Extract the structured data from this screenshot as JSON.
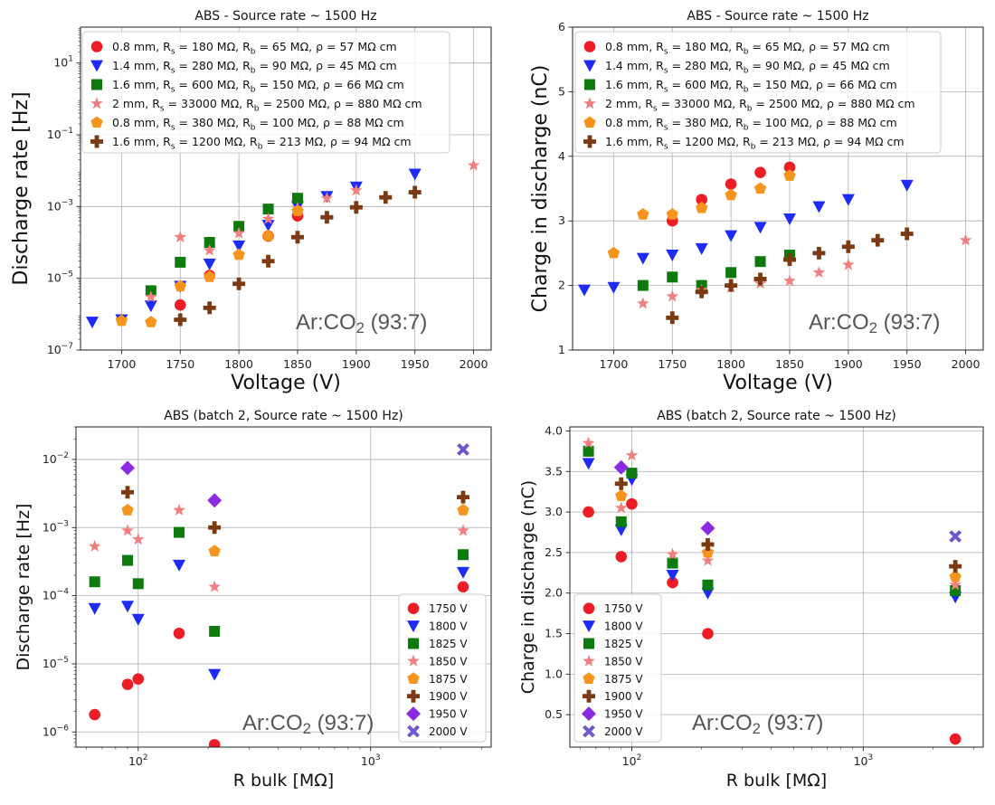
{
  "chart_data": [
    {
      "type": "scatter",
      "title": "ABS - Source rate ~ 1500 Hz",
      "xlabel": "Voltage (V)",
      "ylabel": "Discharge rate [Hz]",
      "yscale": "log",
      "xlim": [
        1665,
        2015
      ],
      "ylim": [
        1e-07,
        100
      ],
      "xticks": [
        1700,
        1750,
        1800,
        1850,
        1900,
        1950,
        2000
      ],
      "yticks": [
        1e-07,
        1e-05,
        0.001,
        0.1,
        10
      ],
      "ytick_labels": [
        {
          "base": "10",
          "exp": "−7"
        },
        {
          "base": "10",
          "exp": "−5"
        },
        {
          "base": "10",
          "exp": "−3"
        },
        {
          "base": "10",
          "exp": "−1"
        },
        {
          "base": "10",
          "exp": "1"
        }
      ],
      "annotation": {
        "main": "Ar:CO",
        "sub": "2",
        "tail": " (93:7)"
      },
      "legend_position": "top-left",
      "series": [
        {
          "name": "0.8 mm, R_s = 180 MΩ, R_b = 65 MΩ, ρ = 57 MΩ cm",
          "label": {
            "a": "0.8 mm, R",
            "b": "s",
            "c": " = 180 MΩ, R",
            "d": "b",
            "e": " = 65 MΩ, ρ = 57 MΩ cm"
          },
          "marker": "circle",
          "color": "#ee1c25",
          "x": [
            1750,
            1775,
            1825,
            1850
          ],
          "y": [
            1.8e-06,
            1.2e-05,
            0.00015,
            0.00055
          ]
        },
        {
          "name": "1.4 mm, R_s = 280 MΩ, R_b = 90 MΩ, ρ = 45 MΩ cm",
          "label": {
            "a": "1.4 mm, R",
            "b": "s",
            "c": " = 280 MΩ, R",
            "d": "b",
            "e": " = 90 MΩ, ρ = 45 MΩ cm"
          },
          "marker": "triangle-down",
          "color": "#1d2bf5",
          "x": [
            1675,
            1700,
            1725,
            1750,
            1775,
            1800,
            1825,
            1850,
            1875,
            1900,
            1950
          ],
          "y": [
            6e-07,
            7e-07,
            1.7e-06,
            6e-06,
            2.5e-05,
            8e-05,
            0.0003,
            0.001,
            0.0019,
            0.0035,
            0.008
          ]
        },
        {
          "name": "1.6 mm, R_s = 600 MΩ, R_b = 150 MΩ, ρ = 66 MΩ cm",
          "label": {
            "a": "1.6 mm, R",
            "b": "s",
            "c": " = 600 MΩ, R",
            "d": "b",
            "e": " = 150 MΩ, ρ = 66 MΩ cm"
          },
          "marker": "square",
          "color": "#0c7a0c",
          "x": [
            1725,
            1750,
            1775,
            1800,
            1825,
            1850
          ],
          "y": [
            4.5e-06,
            2.8e-05,
            0.0001,
            0.00028,
            0.00085,
            0.0017
          ]
        },
        {
          "name": "2 mm, R_s = 33000 MΩ, R_b = 2500 MΩ, ρ = 880 MΩ cm",
          "label": {
            "a": "2 mm, R",
            "b": "s",
            "c": " = 33000 MΩ, R",
            "d": "b",
            "e": " = 2500 MΩ, ρ = 880 MΩ cm"
          },
          "marker": "star",
          "color": "#f08080",
          "x": [
            1700,
            1725,
            1750,
            1775,
            1800,
            1825,
            1850,
            1875,
            1900,
            2000
          ],
          "y": [
            7e-07,
            3e-06,
            0.00014,
            6e-05,
            0.00018,
            0.00045,
            0.0009,
            0.0017,
            0.0028,
            0.014
          ]
        },
        {
          "name": "0.8 mm, R_s = 380 MΩ, R_b = 100 MΩ, ρ = 88 MΩ cm",
          "label": {
            "a": "0.8 mm, R",
            "b": "s",
            "c": " = 380 MΩ, R",
            "d": "b",
            "e": " = 100 MΩ, ρ = 88 MΩ cm"
          },
          "marker": "pentagon",
          "color": "#f7941d",
          "x": [
            1700,
            1725,
            1750,
            1775,
            1800,
            1825,
            1850
          ],
          "y": [
            6.5e-07,
            6e-07,
            6e-06,
            1.1e-05,
            4.5e-05,
            0.00015,
            0.00075
          ]
        },
        {
          "name": "1.6 mm, R_s = 1200 MΩ, R_b = 213 MΩ, ρ = 94 MΩ cm",
          "label": {
            "a": "1.6 mm, R",
            "b": "s",
            "c": " = 1200 MΩ, R",
            "d": "b",
            "e": " = 213 MΩ, ρ = 94 MΩ cm"
          },
          "marker": "plus",
          "color": "#7b3a12",
          "x": [
            1750,
            1775,
            1800,
            1825,
            1850,
            1875,
            1900,
            1925,
            1950
          ],
          "y": [
            7e-07,
            1.5e-06,
            7e-06,
            3e-05,
            0.00014,
            0.0005,
            0.00095,
            0.0018,
            0.0025
          ]
        }
      ]
    },
    {
      "type": "scatter",
      "title": "ABS - Source rate ~ 1500 Hz",
      "xlabel": "Voltage (V)",
      "ylabel": "Charge in discharge (nC)",
      "yscale": "linear",
      "xlim": [
        1665,
        2015
      ],
      "ylim": [
        1,
        6
      ],
      "xticks": [
        1700,
        1750,
        1800,
        1850,
        1900,
        1950,
        2000
      ],
      "yticks": [
        1,
        2,
        3,
        4,
        5,
        6
      ],
      "ytick_labels": [
        "1",
        "2",
        "3",
        "4",
        "5",
        "6"
      ],
      "annotation": {
        "main": "Ar:CO",
        "sub": "2",
        "tail": " (93:7)"
      },
      "legend_position": "top-left",
      "series": [
        {
          "name": "0.8 mm, R_s = 180 MΩ, R_b = 65 MΩ, ρ = 57 MΩ cm",
          "label": {
            "a": "0.8 mm, R",
            "b": "s",
            "c": " = 180 MΩ, R",
            "d": "b",
            "e": " = 65 MΩ, ρ = 57 MΩ cm"
          },
          "marker": "circle",
          "color": "#ee1c25",
          "x": [
            1750,
            1775,
            1800,
            1825,
            1850
          ],
          "y": [
            3.0,
            3.33,
            3.57,
            3.75,
            3.83
          ]
        },
        {
          "name": "1.4 mm, R_s = 280 MΩ, R_b = 90 MΩ, ρ = 45 MΩ cm",
          "label": {
            "a": "1.4 mm, R",
            "b": "s",
            "c": " = 280 MΩ, R",
            "d": "b",
            "e": " = 90 MΩ, ρ = 45 MΩ cm"
          },
          "marker": "triangle-down",
          "color": "#1d2bf5",
          "x": [
            1675,
            1700,
            1725,
            1750,
            1775,
            1800,
            1825,
            1850,
            1875,
            1900,
            1950
          ],
          "y": [
            1.93,
            1.97,
            2.42,
            2.47,
            2.57,
            2.77,
            2.9,
            3.03,
            3.22,
            3.33,
            3.55
          ]
        },
        {
          "name": "1.6 mm, R_s = 600 MΩ, R_b = 150 MΩ, ρ = 66 MΩ cm",
          "label": {
            "a": "1.6 mm, R",
            "b": "s",
            "c": " = 600 MΩ, R",
            "d": "b",
            "e": " = 150 MΩ, ρ = 66 MΩ cm"
          },
          "marker": "square",
          "color": "#0c7a0c",
          "x": [
            1725,
            1750,
            1775,
            1800,
            1825,
            1850
          ],
          "y": [
            2.0,
            2.13,
            2.0,
            2.2,
            2.37,
            2.47
          ]
        },
        {
          "name": "2 mm, R_s = 33000 MΩ, R_b = 2500 MΩ, ρ = 880 MΩ cm",
          "label": {
            "a": "2 mm, R",
            "b": "s",
            "c": " = 33000 MΩ, R",
            "d": "b",
            "e": " = 2500 MΩ, ρ = 880 MΩ cm"
          },
          "marker": "star",
          "color": "#f08080",
          "x": [
            1725,
            1750,
            1775,
            1800,
            1825,
            1850,
            1875,
            1900,
            2000
          ],
          "y": [
            1.72,
            1.83,
            1.93,
            1.97,
            2.03,
            2.07,
            2.2,
            2.32,
            2.7
          ]
        },
        {
          "name": "0.8 mm, R_s = 380 MΩ, R_b = 100 MΩ, ρ = 88 MΩ cm",
          "label": {
            "a": "0.8 mm, R",
            "b": "s",
            "c": " = 380 MΩ, R",
            "d": "b",
            "e": " = 100 MΩ, ρ = 88 MΩ cm"
          },
          "marker": "pentagon",
          "color": "#f7941d",
          "x": [
            1700,
            1725,
            1750,
            1775,
            1800,
            1825,
            1850
          ],
          "y": [
            2.5,
            3.1,
            3.1,
            3.2,
            3.4,
            3.5,
            3.7
          ]
        },
        {
          "name": "1.6 mm, R_s = 1200 MΩ, R_b = 213 MΩ, ρ = 94 MΩ cm",
          "label": {
            "a": "1.6 mm, R",
            "b": "s",
            "c": " = 1200 MΩ, R",
            "d": "b",
            "e": " = 213 MΩ, ρ = 94 MΩ cm"
          },
          "marker": "plus",
          "color": "#7b3a12",
          "x": [
            1750,
            1775,
            1800,
            1825,
            1850,
            1875,
            1900,
            1925,
            1950
          ],
          "y": [
            1.5,
            1.9,
            2.0,
            2.1,
            2.4,
            2.5,
            2.6,
            2.7,
            2.8
          ]
        }
      ]
    },
    {
      "type": "scatter",
      "title": "ABS (batch 2, Source rate ~ 1500 Hz)",
      "xlabel": "R bulk [MΩ]",
      "ylabel": "Discharge rate [Hz]",
      "xscale": "log",
      "yscale": "log",
      "xlim": [
        54,
        3300
      ],
      "ylim": [
        6e-07,
        0.03
      ],
      "xticks": [
        100,
        1000
      ],
      "xtick_labels": [
        {
          "base": "10",
          "exp": "2"
        },
        {
          "base": "10",
          "exp": "3"
        }
      ],
      "yticks": [
        1e-06,
        1e-05,
        0.0001,
        0.001,
        0.01
      ],
      "ytick_labels": [
        {
          "base": "10",
          "exp": "−6"
        },
        {
          "base": "10",
          "exp": "−5"
        },
        {
          "base": "10",
          "exp": "−4"
        },
        {
          "base": "10",
          "exp": "−3"
        },
        {
          "base": "10",
          "exp": "−2"
        }
      ],
      "annotation": {
        "main": "Ar:CO",
        "sub": "2",
        "tail": " (93:7)"
      },
      "legend_position": "lower-right",
      "series": [
        {
          "name": "1750 V",
          "marker": "circle",
          "color": "#ee1c25",
          "x": [
            65,
            90,
            100,
            150,
            213,
            2500
          ],
          "y": [
            1.8e-06,
            5e-06,
            6e-06,
            2.8e-05,
            6.5e-07,
            0.000135
          ]
        },
        {
          "name": "1800 V",
          "marker": "triangle-down",
          "color": "#1d2bf5",
          "x": [
            65,
            90,
            100,
            150,
            213,
            2500
          ],
          "y": [
            6.5e-05,
            7e-05,
            4.5e-05,
            0.00028,
            7e-06,
            0.00022
          ]
        },
        {
          "name": "1825 V",
          "marker": "square",
          "color": "#0c7a0c",
          "x": [
            65,
            90,
            100,
            150,
            213,
            2500
          ],
          "y": [
            0.00016,
            0.00033,
            0.00015,
            0.00085,
            3e-05,
            0.0004
          ]
        },
        {
          "name": "1850 V",
          "marker": "star",
          "color": "#f08080",
          "x": [
            65,
            90,
            100,
            150,
            213,
            2500
          ],
          "y": [
            0.00053,
            0.0009,
            0.00067,
            0.0018,
            0.000135,
            0.0009
          ]
        },
        {
          "name": "1875 V",
          "marker": "pentagon",
          "color": "#f7941d",
          "x": [
            90,
            213,
            2500
          ],
          "y": [
            0.0018,
            0.00045,
            0.0018
          ]
        },
        {
          "name": "1900 V",
          "marker": "plus",
          "color": "#7b3a12",
          "x": [
            90,
            213,
            2500
          ],
          "y": [
            0.0033,
            0.001,
            0.0028
          ]
        },
        {
          "name": "1950 V",
          "marker": "diamond",
          "color": "#8a2be2",
          "x": [
            90,
            213
          ],
          "y": [
            0.0075,
            0.0025
          ]
        },
        {
          "name": "2000 V",
          "marker": "x",
          "color": "#6a5acd",
          "x": [
            2500
          ],
          "y": [
            0.014
          ]
        }
      ]
    },
    {
      "type": "scatter",
      "title": "ABS (batch 2, Source rate ~ 1500 Hz)",
      "xlabel": "R bulk [MΩ]",
      "ylabel": "Charge in discharge (nC)",
      "xscale": "log",
      "yscale": "linear",
      "xlim": [
        54,
        3300
      ],
      "ylim": [
        0.1,
        4.05
      ],
      "xticks": [
        100,
        1000
      ],
      "xtick_labels": [
        {
          "base": "10",
          "exp": "2"
        },
        {
          "base": "10",
          "exp": "3"
        }
      ],
      "yticks": [
        0.5,
        1.0,
        1.5,
        2.0,
        2.5,
        3.0,
        3.5,
        4.0
      ],
      "ytick_labels": [
        "0.5",
        "1.0",
        "1.5",
        "2.0",
        "2.5",
        "3.0",
        "3.5",
        "4.0"
      ],
      "annotation": {
        "main": "Ar:CO",
        "sub": "2",
        "tail": " (93:7)"
      },
      "legend_position": "lower-left",
      "series": [
        {
          "name": "1750 V",
          "marker": "circle",
          "color": "#ee1c25",
          "x": [
            65,
            90,
            100,
            150,
            213,
            2500
          ],
          "y": [
            3.0,
            2.45,
            3.1,
            2.13,
            1.5,
            0.2
          ]
        },
        {
          "name": "1800 V",
          "marker": "triangle-down",
          "color": "#1d2bf5",
          "x": [
            65,
            90,
            100,
            150,
            213,
            2500
          ],
          "y": [
            3.6,
            2.78,
            3.4,
            2.22,
            2.0,
            1.95
          ]
        },
        {
          "name": "1825 V",
          "marker": "square",
          "color": "#0c7a0c",
          "x": [
            65,
            90,
            100,
            150,
            213,
            2500
          ],
          "y": [
            3.75,
            2.88,
            3.48,
            2.37,
            2.1,
            2.03
          ]
        },
        {
          "name": "1850 V",
          "marker": "star",
          "color": "#f08080",
          "x": [
            65,
            90,
            100,
            150,
            213,
            2500
          ],
          "y": [
            3.85,
            3.05,
            3.7,
            2.48,
            2.4,
            2.1
          ]
        },
        {
          "name": "1875 V",
          "marker": "pentagon",
          "color": "#f7941d",
          "x": [
            90,
            213,
            2500
          ],
          "y": [
            3.2,
            2.5,
            2.2
          ]
        },
        {
          "name": "1900 V",
          "marker": "plus",
          "color": "#7b3a12",
          "x": [
            90,
            213,
            2500
          ],
          "y": [
            3.35,
            2.6,
            2.33
          ]
        },
        {
          "name": "1950 V",
          "marker": "diamond",
          "color": "#8a2be2",
          "x": [
            90,
            213
          ],
          "y": [
            3.55,
            2.8
          ]
        },
        {
          "name": "2000 V",
          "marker": "x",
          "color": "#6a5acd",
          "x": [
            2500
          ],
          "y": [
            2.7
          ]
        }
      ]
    }
  ]
}
